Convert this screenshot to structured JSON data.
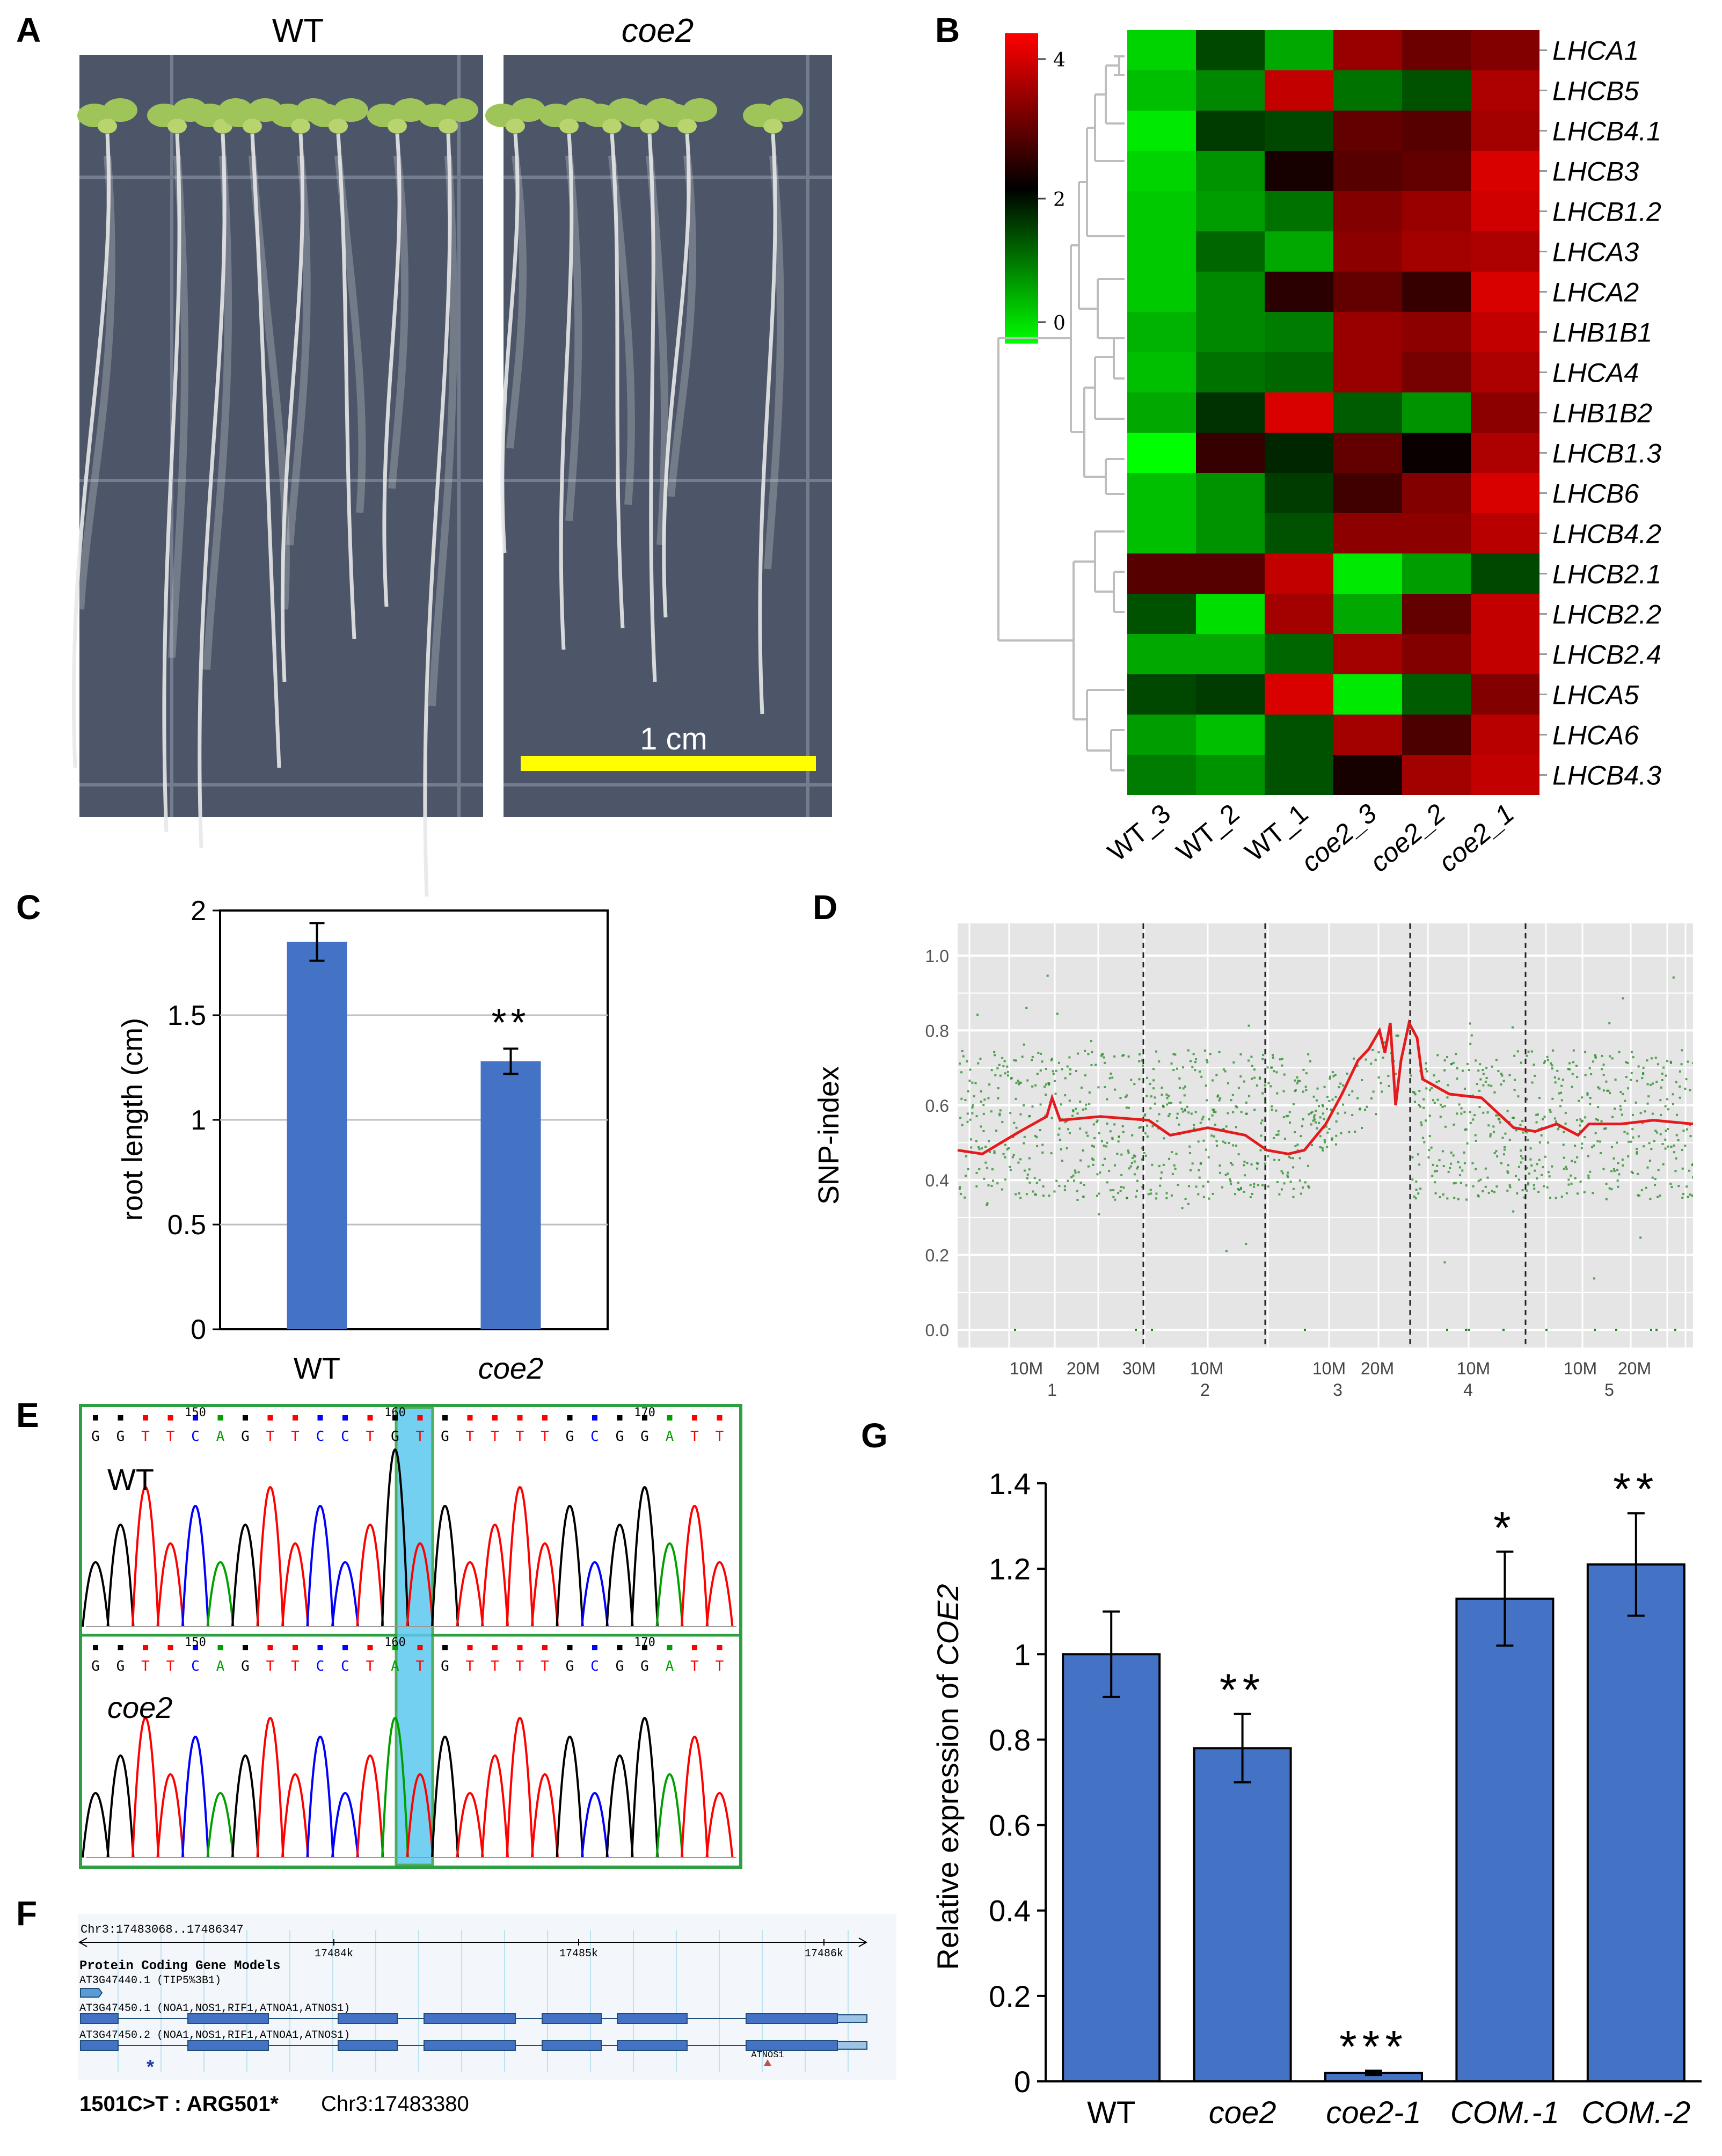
{
  "panel_labels": {
    "a": "A",
    "b": "B",
    "c": "C",
    "d": "D",
    "e": "E",
    "f": "F",
    "g": "G"
  },
  "panel_a": {
    "left_label": "WT",
    "right_label": "coe2",
    "scale_label": "1 cm",
    "colors": {
      "plate": "#4d5668",
      "bar": "#ffff00",
      "leaf": "#9ec45a",
      "root": "#e8e8e8"
    }
  },
  "panel_b": {
    "rows": [
      "LHCA1",
      "LHCB5",
      "LHCB4.1",
      "LHCB3",
      "LHCB1.2",
      "LHCA3",
      "LHCA2",
      "LHB1B1",
      "LHCA4",
      "LHB1B2",
      "LHCB1.3",
      "LHCB6",
      "LHCB4.2",
      "LHCB2.1",
      "LHCB2.2",
      "LHCB2.4",
      "LHCA5",
      "LHCA6",
      "LHCB4.3"
    ],
    "columns": [
      "WT_3",
      "WT_2",
      "WT_1",
      "coe2_3",
      "coe2_2",
      "coe2_1"
    ],
    "scale_ticks": [
      "4",
      "2",
      "0"
    ],
    "values": [
      [
        0.4,
        1.7,
        0.8,
        3.4,
        3.0,
        3.2
      ],
      [
        0.6,
        1.1,
        3.8,
        1.3,
        1.6,
        3.6
      ],
      [
        0.2,
        1.8,
        1.7,
        2.9,
        2.8,
        3.5
      ],
      [
        0.4,
        1.0,
        2.2,
        2.8,
        2.9,
        4.0
      ],
      [
        0.5,
        0.9,
        1.3,
        3.2,
        3.4,
        3.9
      ],
      [
        0.5,
        1.4,
        0.8,
        3.3,
        3.5,
        3.6
      ],
      [
        0.5,
        1.1,
        2.4,
        2.9,
        2.5,
        4.0
      ],
      [
        0.7,
        1.1,
        1.2,
        3.4,
        3.3,
        3.8
      ],
      [
        0.6,
        1.3,
        1.4,
        3.4,
        3.1,
        3.6
      ],
      [
        0.8,
        1.9,
        4.0,
        1.5,
        1.0,
        3.3
      ],
      [
        0.0,
        2.5,
        2.0,
        2.9,
        2.1,
        3.6
      ],
      [
        0.6,
        1.0,
        1.8,
        2.6,
        3.2,
        4.0
      ],
      [
        0.6,
        1.0,
        1.6,
        3.3,
        3.3,
        3.7
      ],
      [
        2.8,
        2.8,
        3.8,
        0.2,
        0.9,
        1.7
      ],
      [
        1.6,
        0.3,
        3.5,
        0.8,
        2.9,
        3.8
      ],
      [
        0.8,
        0.8,
        1.4,
        3.5,
        3.2,
        3.8
      ],
      [
        1.7,
        1.8,
        4.0,
        0.2,
        1.5,
        3.2
      ],
      [
        0.9,
        0.6,
        1.6,
        3.5,
        2.7,
        3.7
      ],
      [
        1.2,
        1.0,
        1.6,
        2.2,
        3.5,
        3.8
      ]
    ],
    "colors": {
      "low": "#00ff00",
      "mid": "#000000",
      "high": "#ff0000"
    }
  },
  "panel_c": {
    "chart_data": {
      "type": "bar",
      "categories": [
        "WT",
        "coe2"
      ],
      "values": [
        1.85,
        1.28
      ],
      "errors": [
        0.09,
        0.06
      ],
      "significance": [
        "",
        "**"
      ],
      "ylabel": "root length (cm)",
      "ylim": [
        0,
        2
      ],
      "yticks": [
        "0",
        "0.5",
        "1",
        "1.5",
        "2"
      ],
      "grid": true
    },
    "colors": {
      "bar": "#4472c4"
    }
  },
  "panel_d": {
    "ylabel": "SNP-index",
    "yticks": [
      "0.0",
      "0.2",
      "0.4",
      "0.6",
      "0.8",
      "1.0"
    ],
    "xticks": [
      "10M",
      "20M",
      "30M",
      "10M",
      "10M",
      "20M",
      "10M",
      "10M",
      "20M"
    ],
    "chromosomes": [
      "1",
      "2",
      "3",
      "4",
      "5"
    ],
    "colors": {
      "bg": "#e5e5e5",
      "points": "#1f8a1f",
      "line": "#e41a1c"
    }
  },
  "panel_e": {
    "wt_label": "WT",
    "mut_label": "coe2",
    "position_labels": [
      "150",
      "160",
      "170"
    ],
    "wt_bases": [
      "G",
      "G",
      "T",
      "T",
      "C",
      "A",
      "G",
      "T",
      "T",
      "C",
      "C",
      "T",
      "G",
      "T",
      "G",
      "T",
      "T",
      "T",
      "T",
      "G",
      "C",
      "G",
      "G",
      "A",
      "T",
      "T"
    ],
    "mut_bases": [
      "G",
      "G",
      "T",
      "T",
      "C",
      "A",
      "G",
      "T",
      "T",
      "C",
      "C",
      "T",
      "A",
      "T",
      "G",
      "T",
      "T",
      "T",
      "T",
      "G",
      "C",
      "G",
      "G",
      "A",
      "T",
      "T"
    ],
    "colors": {
      "G": "#000000",
      "A": "#00a000",
      "T": "#ff0000",
      "C": "#0000ff",
      "frame": "#2ea043",
      "highlight": "#5bc8ee"
    }
  },
  "panel_f": {
    "coords": "Chr3:17483068..17486347",
    "ruler": [
      "17484k",
      "17485k",
      "17486k"
    ],
    "section_title": "Protein Coding Gene Models",
    "genes": [
      "AT3G47440.1 (TIP5%3B1)",
      "AT3G47450.1 (NOA1,NOS1,RIF1,ATNOA1,ATNOS1)",
      "AT3G47450.2 (NOA1,NOS1,RIF1,ATNOA1,ATNOS1)"
    ],
    "marker_label": "ATNOS1",
    "mutation": "1501C>T : ARG501*",
    "mutation_pos": "Chr3:17483380",
    "star": "*"
  },
  "panel_g": {
    "chart_data": {
      "type": "bar",
      "categories": [
        "WT",
        "coe2",
        "coe2-1",
        "COM.-1",
        "COM.-2"
      ],
      "values": [
        1.0,
        0.78,
        0.02,
        1.13,
        1.21
      ],
      "errors": [
        0.1,
        0.08,
        0.005,
        0.11,
        0.12
      ],
      "significance": [
        "",
        "**",
        "***",
        "*",
        "**"
      ],
      "ylabel_prefix": "Relative expression of ",
      "ylabel_gene": "COE2",
      "ylim": [
        0,
        1.4
      ],
      "yticks": [
        "0",
        "0.2",
        "0.4",
        "0.6",
        "0.8",
        "1",
        "1.2",
        "1.4"
      ]
    },
    "colors": {
      "bar": "#4472c4"
    }
  }
}
